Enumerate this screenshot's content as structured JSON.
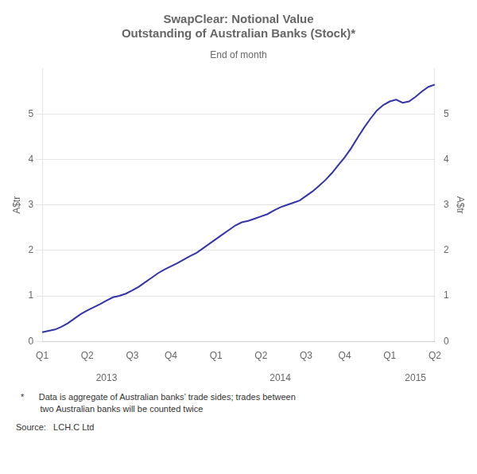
{
  "chart_data": {
    "type": "line",
    "title": [
      "SwapClear: Notional Value",
      "Outstanding of Australian Banks (Stock)*"
    ],
    "subtitle": "End of month",
    "ylabel": "A$tr",
    "y2label": "A$tr",
    "categories": [
      "Q1",
      null,
      null,
      null,
      null,
      null,
      null,
      "Q2",
      null,
      null,
      null,
      null,
      null,
      null,
      "Q3",
      null,
      null,
      null,
      null,
      null,
      "Q4",
      null,
      null,
      null,
      null,
      null,
      null,
      "Q1",
      null,
      null,
      null,
      null,
      null,
      null,
      "Q2",
      null,
      null,
      null,
      null,
      null,
      null,
      "Q3",
      null,
      null,
      null,
      null,
      null,
      "Q4",
      null,
      null,
      null,
      null,
      null,
      null,
      "Q1",
      null,
      null,
      null,
      null,
      null,
      null,
      "Q2"
    ],
    "category_groups": [
      null,
      null,
      null,
      null,
      null,
      null,
      null,
      null,
      null,
      null,
      "2013",
      null,
      null,
      null,
      null,
      null,
      null,
      null,
      null,
      null,
      null,
      null,
      null,
      null,
      null,
      null,
      null,
      null,
      null,
      null,
      null,
      null,
      null,
      null,
      null,
      null,
      null,
      "2014",
      null,
      null,
      null,
      null,
      null,
      null,
      null,
      null,
      null,
      null,
      null,
      null,
      null,
      null,
      null,
      null,
      null,
      null,
      null,
      null,
      "2015",
      null,
      null,
      null
    ],
    "values": [
      0.2,
      0.23,
      0.26,
      0.32,
      0.4,
      0.5,
      0.6,
      0.68,
      0.75,
      0.82,
      0.9,
      0.97,
      1.0,
      1.05,
      1.12,
      1.2,
      1.3,
      1.4,
      1.5,
      1.58,
      1.65,
      1.72,
      1.8,
      1.88,
      1.95,
      2.05,
      2.15,
      2.25,
      2.35,
      2.45,
      2.55,
      2.62,
      2.65,
      2.7,
      2.75,
      2.8,
      2.88,
      2.95,
      3.0,
      3.05,
      3.1,
      3.2,
      3.3,
      3.42,
      3.55,
      3.7,
      3.88,
      4.05,
      4.25,
      4.48,
      4.7,
      4.9,
      5.08,
      5.2,
      5.28,
      5.32,
      5.25,
      5.28,
      5.38,
      5.5,
      5.6,
      5.65
    ],
    "color": "#3333aa",
    "ylim": [
      0,
      6
    ],
    "yticks": [
      0,
      1,
      2,
      3,
      4,
      5
    ],
    "y2lim": [
      0,
      6
    ],
    "y2ticks": [
      0,
      1,
      2,
      3,
      4,
      5
    ],
    "grid": true,
    "footnotes": [
      "  *      Data is aggregate of Australian banks’ trade sides; trades between",
      "          two Australian banks will be counted twice"
    ],
    "source_label": "Source:",
    "source_value": "   LCH.C Ltd"
  }
}
